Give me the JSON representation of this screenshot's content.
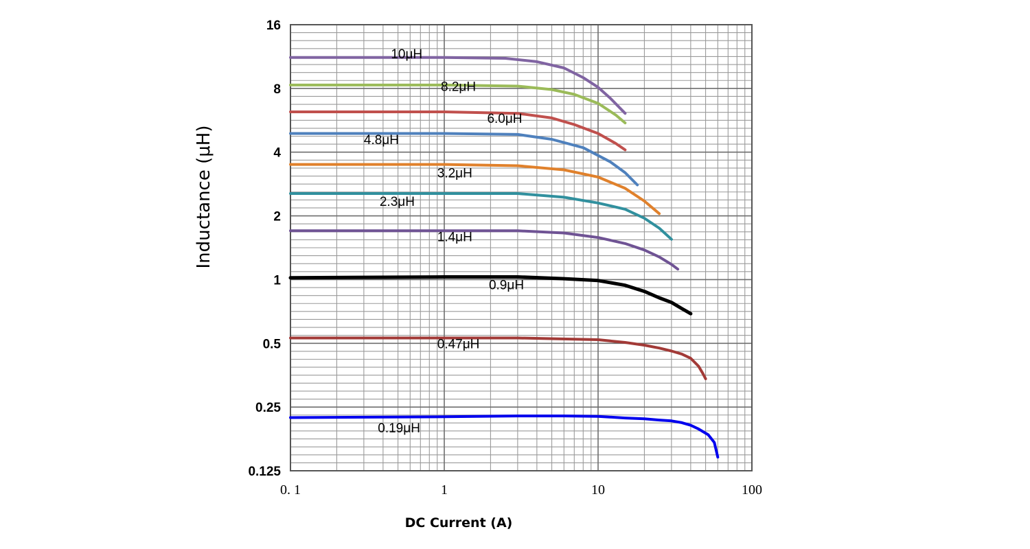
{
  "chart_data": {
    "type": "line",
    "xlabel": "DC Current (A)",
    "ylabel": "Inductance (μH)",
    "x_scale": "log",
    "y_scale": "log2",
    "xlim": [
      0.1,
      100
    ],
    "ylim": [
      0.125,
      16
    ],
    "x_tick_labels": [
      {
        "value": 0.1,
        "label": "0. 1"
      },
      {
        "value": 1,
        "label": "1"
      },
      {
        "value": 10,
        "label": "10"
      },
      {
        "value": 100,
        "label": "100"
      }
    ],
    "y_tick_labels": [
      {
        "value": 16,
        "label": "16"
      },
      {
        "value": 8,
        "label": "8"
      },
      {
        "value": 4,
        "label": "4"
      },
      {
        "value": 2,
        "label": "2"
      },
      {
        "value": 1,
        "label": "1"
      },
      {
        "value": 0.5,
        "label": "0.5"
      },
      {
        "value": 0.25,
        "label": "0.25"
      },
      {
        "value": 0.125,
        "label": "0.125"
      }
    ],
    "grid": true,
    "legend": "none",
    "series": [
      {
        "name": "10μH",
        "color": "#8064a2",
        "width": 4,
        "label_at": [
          0.45,
          11.7
        ],
        "points": [
          [
            0.1,
            11.2
          ],
          [
            1,
            11.2
          ],
          [
            2.5,
            11.1
          ],
          [
            4,
            10.7
          ],
          [
            6,
            10.0
          ],
          [
            8,
            9.0
          ],
          [
            10,
            8.1
          ],
          [
            12,
            7.2
          ],
          [
            15,
            6.1
          ]
        ]
      },
      {
        "name": "8.2μH",
        "color": "#9bbb59",
        "width": 4,
        "label_at": [
          0.95,
          8.2
        ],
        "points": [
          [
            0.1,
            8.3
          ],
          [
            1,
            8.3
          ],
          [
            3,
            8.2
          ],
          [
            5,
            7.9
          ],
          [
            7,
            7.5
          ],
          [
            10,
            6.8
          ],
          [
            13,
            6.0
          ],
          [
            15,
            5.5
          ]
        ]
      },
      {
        "name": "6.0μH",
        "color": "#c0504d",
        "width": 4,
        "label_at": [
          1.9,
          5.8
        ],
        "points": [
          [
            0.1,
            6.2
          ],
          [
            1,
            6.2
          ],
          [
            3,
            6.1
          ],
          [
            5,
            5.8
          ],
          [
            7,
            5.4
          ],
          [
            10,
            4.9
          ],
          [
            13,
            4.4
          ],
          [
            15,
            4.1
          ]
        ]
      },
      {
        "name": "4.8μH",
        "color": "#4f81bd",
        "width": 4,
        "label_at": [
          0.3,
          4.6
        ],
        "points": [
          [
            0.1,
            4.9
          ],
          [
            1,
            4.9
          ],
          [
            3,
            4.85
          ],
          [
            5,
            4.6
          ],
          [
            8,
            4.2
          ],
          [
            12,
            3.6
          ],
          [
            15,
            3.2
          ],
          [
            18,
            2.8
          ]
        ]
      },
      {
        "name": "3.2μH",
        "color": "#e0812c",
        "width": 4,
        "label_at": [
          0.9,
          3.2
        ],
        "points": [
          [
            0.1,
            3.5
          ],
          [
            1,
            3.5
          ],
          [
            3,
            3.45
          ],
          [
            6,
            3.3
          ],
          [
            10,
            3.05
          ],
          [
            15,
            2.7
          ],
          [
            20,
            2.35
          ],
          [
            25,
            2.05
          ]
        ]
      },
      {
        "name": "2.3μH",
        "color": "#31909e",
        "width": 4,
        "label_at": [
          0.38,
          2.35
        ],
        "points": [
          [
            0.1,
            2.55
          ],
          [
            1,
            2.55
          ],
          [
            3,
            2.55
          ],
          [
            6,
            2.45
          ],
          [
            10,
            2.3
          ],
          [
            15,
            2.15
          ],
          [
            20,
            1.95
          ],
          [
            25,
            1.75
          ],
          [
            30,
            1.55
          ]
        ]
      },
      {
        "name": "1.4μH",
        "color": "#6f5394",
        "width": 4,
        "label_at": [
          0.9,
          1.6
        ],
        "points": [
          [
            0.1,
            1.7
          ],
          [
            1,
            1.7
          ],
          [
            3,
            1.7
          ],
          [
            6,
            1.66
          ],
          [
            10,
            1.58
          ],
          [
            15,
            1.48
          ],
          [
            20,
            1.38
          ],
          [
            25,
            1.28
          ],
          [
            30,
            1.18
          ],
          [
            33,
            1.12
          ]
        ]
      },
      {
        "name": "0.9μH",
        "color": "#000000",
        "width": 5,
        "label_at": [
          1.95,
          0.95
        ],
        "points": [
          [
            0.1,
            1.02
          ],
          [
            1,
            1.03
          ],
          [
            3,
            1.03
          ],
          [
            6,
            1.01
          ],
          [
            10,
            0.99
          ],
          [
            15,
            0.94
          ],
          [
            20,
            0.88
          ],
          [
            25,
            0.82
          ],
          [
            30,
            0.78
          ],
          [
            35,
            0.73
          ],
          [
            40,
            0.69
          ]
        ]
      },
      {
        "name": "0.47μH",
        "color": "#a23a37",
        "width": 4,
        "label_at": [
          0.9,
          0.5
        ],
        "points": [
          [
            0.1,
            0.53
          ],
          [
            1,
            0.53
          ],
          [
            3,
            0.53
          ],
          [
            10,
            0.52
          ],
          [
            15,
            0.505
          ],
          [
            20,
            0.49
          ],
          [
            25,
            0.475
          ],
          [
            30,
            0.46
          ],
          [
            35,
            0.445
          ],
          [
            40,
            0.425
          ],
          [
            45,
            0.39
          ],
          [
            48,
            0.36
          ],
          [
            50,
            0.34
          ]
        ]
      },
      {
        "name": "0.19μH",
        "color": "#0000ee",
        "width": 4,
        "label_at": [
          0.37,
          0.2
        ],
        "points": [
          [
            0.1,
            0.223
          ],
          [
            1,
            0.225
          ],
          [
            3,
            0.227
          ],
          [
            6,
            0.227
          ],
          [
            10,
            0.226
          ],
          [
            15,
            0.222
          ],
          [
            20,
            0.22
          ],
          [
            25,
            0.217
          ],
          [
            30,
            0.215
          ],
          [
            35,
            0.211
          ],
          [
            40,
            0.205
          ],
          [
            45,
            0.197
          ],
          [
            52,
            0.185
          ],
          [
            57,
            0.17
          ],
          [
            60,
            0.145
          ]
        ]
      }
    ]
  }
}
